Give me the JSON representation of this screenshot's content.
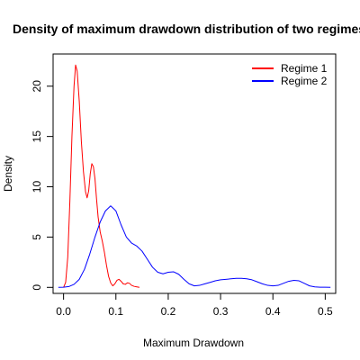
{
  "chart_data": {
    "type": "line",
    "title": "Density of maximum drawdown distribution of two regimes",
    "xlabel": "Maximum Drawdown",
    "ylabel": "Density",
    "xlim": [
      -0.02,
      0.52
    ],
    "ylim": [
      -0.6,
      23.2
    ],
    "x_ticks": [
      "0.0",
      "0.1",
      "0.2",
      "0.3",
      "0.4",
      "0.5"
    ],
    "y_ticks": [
      "0",
      "5",
      "10",
      "15",
      "20"
    ],
    "legend": {
      "position": "top-right",
      "box": false
    },
    "series": [
      {
        "name": "Regime 1",
        "color": "#ff0000",
        "points": [
          [
            0.0,
            0.0
          ],
          [
            0.004,
            0.5
          ],
          [
            0.008,
            3.0
          ],
          [
            0.012,
            8.5
          ],
          [
            0.016,
            15.0
          ],
          [
            0.02,
            20.0
          ],
          [
            0.023,
            22.1
          ],
          [
            0.026,
            21.5
          ],
          [
            0.03,
            18.5
          ],
          [
            0.034,
            14.5
          ],
          [
            0.038,
            11.5
          ],
          [
            0.042,
            9.5
          ],
          [
            0.045,
            8.9
          ],
          [
            0.048,
            9.6
          ],
          [
            0.051,
            11.3
          ],
          [
            0.054,
            12.3
          ],
          [
            0.057,
            12.0
          ],
          [
            0.06,
            10.8
          ],
          [
            0.063,
            8.8
          ],
          [
            0.066,
            7.0
          ],
          [
            0.07,
            5.5
          ],
          [
            0.074,
            4.6
          ],
          [
            0.078,
            3.5
          ],
          [
            0.082,
            2.2
          ],
          [
            0.086,
            1.1
          ],
          [
            0.09,
            0.45
          ],
          [
            0.094,
            0.15
          ],
          [
            0.098,
            0.35
          ],
          [
            0.102,
            0.7
          ],
          [
            0.106,
            0.8
          ],
          [
            0.11,
            0.6
          ],
          [
            0.114,
            0.35
          ],
          [
            0.118,
            0.3
          ],
          [
            0.122,
            0.45
          ],
          [
            0.126,
            0.4
          ],
          [
            0.13,
            0.2
          ],
          [
            0.135,
            0.1
          ],
          [
            0.14,
            0.05
          ],
          [
            0.145,
            0.0
          ]
        ]
      },
      {
        "name": "Regime 2",
        "color": "#0000ff",
        "points": [
          [
            -0.01,
            0.0
          ],
          [
            0.0,
            0.02
          ],
          [
            0.01,
            0.08
          ],
          [
            0.02,
            0.3
          ],
          [
            0.03,
            0.8
          ],
          [
            0.04,
            1.8
          ],
          [
            0.05,
            3.3
          ],
          [
            0.06,
            5.0
          ],
          [
            0.07,
            6.5
          ],
          [
            0.08,
            7.6
          ],
          [
            0.09,
            8.1
          ],
          [
            0.1,
            7.6
          ],
          [
            0.11,
            6.2
          ],
          [
            0.12,
            5.0
          ],
          [
            0.13,
            4.4
          ],
          [
            0.14,
            4.1
          ],
          [
            0.15,
            3.6
          ],
          [
            0.16,
            2.8
          ],
          [
            0.17,
            2.0
          ],
          [
            0.18,
            1.5
          ],
          [
            0.19,
            1.35
          ],
          [
            0.2,
            1.5
          ],
          [
            0.21,
            1.55
          ],
          [
            0.22,
            1.3
          ],
          [
            0.23,
            0.8
          ],
          [
            0.24,
            0.35
          ],
          [
            0.25,
            0.15
          ],
          [
            0.26,
            0.2
          ],
          [
            0.27,
            0.35
          ],
          [
            0.28,
            0.5
          ],
          [
            0.29,
            0.65
          ],
          [
            0.3,
            0.75
          ],
          [
            0.31,
            0.8
          ],
          [
            0.32,
            0.85
          ],
          [
            0.33,
            0.9
          ],
          [
            0.34,
            0.9
          ],
          [
            0.35,
            0.85
          ],
          [
            0.36,
            0.75
          ],
          [
            0.37,
            0.55
          ],
          [
            0.38,
            0.35
          ],
          [
            0.39,
            0.2
          ],
          [
            0.4,
            0.15
          ],
          [
            0.41,
            0.2
          ],
          [
            0.42,
            0.4
          ],
          [
            0.43,
            0.6
          ],
          [
            0.44,
            0.7
          ],
          [
            0.45,
            0.65
          ],
          [
            0.46,
            0.4
          ],
          [
            0.47,
            0.15
          ],
          [
            0.48,
            0.05
          ],
          [
            0.49,
            0.02
          ],
          [
            0.5,
            0.01
          ],
          [
            0.51,
            0.0
          ]
        ]
      }
    ]
  }
}
